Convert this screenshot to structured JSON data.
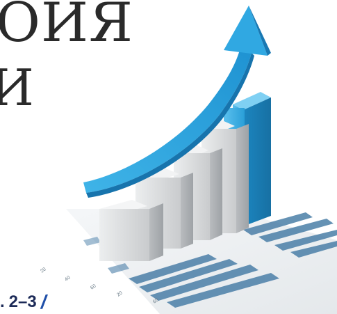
{
  "heading": {
    "line1": "ОИЯ",
    "line2": "И"
  },
  "issue": {
    "dot": ".",
    "number": "2–3",
    "slash": "/"
  },
  "illustration": {
    "icon": "growth-bar-chart-with-rising-arrow",
    "bars_color": "#d4d6d8",
    "highlight_bar_color": "#2aa2dc",
    "arrow_color": "#2b9fd9",
    "paper_stripe_color": "#4b7fa8"
  }
}
